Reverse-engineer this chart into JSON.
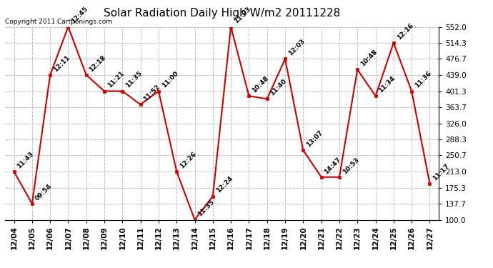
{
  "title": "Solar Radiation Daily High W/m2 20111228",
  "copyright": "Copyright 2011 Cartponings.com",
  "dates": [
    "12/04",
    "12/05",
    "12/06",
    "12/07",
    "12/08",
    "12/09",
    "12/10",
    "12/11",
    "12/12",
    "12/13",
    "12/14",
    "12/15",
    "12/16",
    "12/17",
    "12/18",
    "12/19",
    "12/20",
    "12/21",
    "12/22",
    "12/23",
    "12/24",
    "12/25",
    "12/26",
    "12/27"
  ],
  "values": [
    213.0,
    137.7,
    439.0,
    552.0,
    439.0,
    401.3,
    401.3,
    370.0,
    401.3,
    213.0,
    100.0,
    155.0,
    552.0,
    390.0,
    383.0,
    476.7,
    263.0,
    200.0,
    200.0,
    452.0,
    390.0,
    514.3,
    401.3,
    185.0
  ],
  "labels": [
    "11:43",
    "09:54",
    "12:11",
    "12:45",
    "12:18",
    "11:21",
    "11:35",
    "11:52",
    "11:00",
    "12:26",
    "11:35",
    "12:24",
    "11:03",
    "10:48",
    "11:40",
    "12:03",
    "13:07",
    "14:47",
    "10:53",
    "10:48",
    "11:34",
    "12:16",
    "11:36",
    "11:17"
  ],
  "line_color": "#cc0000",
  "marker_color": "#cc0000",
  "background_color": "#ffffff",
  "grid_color": "#bbbbbb",
  "text_color": "#000000",
  "ylim": [
    100.0,
    552.0
  ],
  "yticks": [
    100.0,
    137.7,
    175.3,
    213.0,
    250.7,
    288.3,
    326.0,
    363.7,
    401.3,
    439.0,
    476.7,
    514.3,
    552.0
  ],
  "title_fontsize": 11,
  "label_fontsize": 6.5,
  "copyright_fontsize": 6.5,
  "tick_fontsize": 7.5
}
